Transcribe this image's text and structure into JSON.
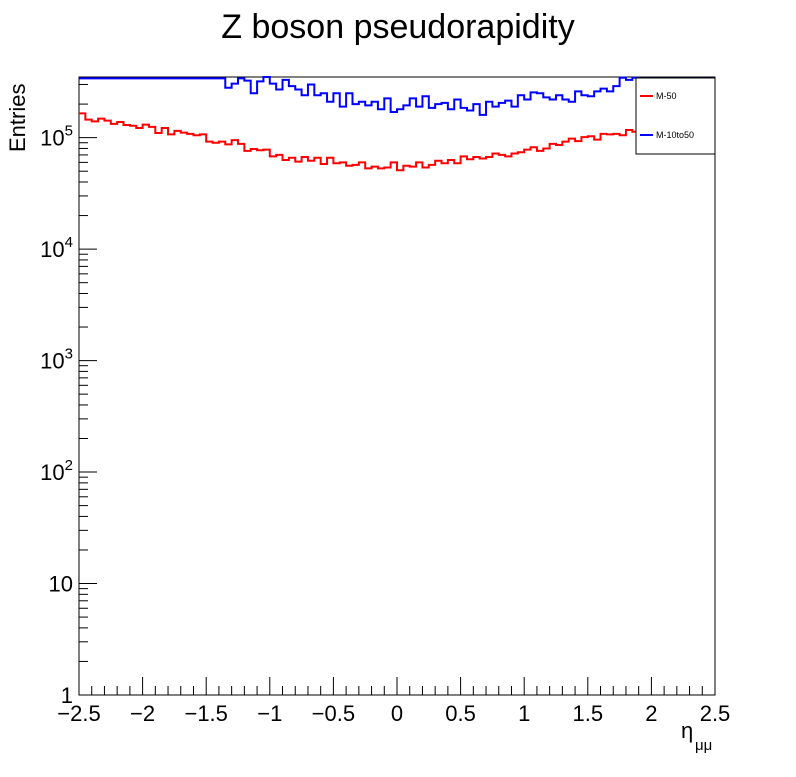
{
  "chart_data": {
    "type": "line",
    "title": "Z boson pseudorapidity",
    "xlabel": "η",
    "xlabel_sub": "μμ",
    "ylabel": "Entries",
    "xlim": [
      -2.5,
      2.5
    ],
    "ylim": [
      1,
      350000
    ],
    "log_y": true,
    "grid": false,
    "legend_position": "top-right",
    "x_ticks": [
      -2.5,
      -2,
      -1.5,
      -1,
      -0.5,
      0,
      0.5,
      1,
      1.5,
      2,
      2.5
    ],
    "x_tick_labels": [
      "−2.5",
      "−2",
      "−1.5",
      "−1",
      "−0.5",
      "0",
      "0.5",
      "1",
      "1.5",
      "2",
      "2.5"
    ],
    "y_ticks": [
      1,
      10,
      100,
      1000,
      10000,
      100000
    ],
    "y_tick_labels": [
      {
        "base": "1",
        "exp": ""
      },
      {
        "base": "10",
        "exp": ""
      },
      {
        "base": "10",
        "exp": "2"
      },
      {
        "base": "10",
        "exp": "3"
      },
      {
        "base": "10",
        "exp": "4"
      },
      {
        "base": "10",
        "exp": "5"
      }
    ],
    "series": [
      {
        "name": "M-50",
        "color": "#ff0000",
        "bin_edges": [
          -2.5,
          2.5
        ],
        "values": [
          165000,
          145000,
          140000,
          148000,
          142000,
          133000,
          138000,
          130000,
          128000,
          122000,
          131000,
          125000,
          110000,
          122000,
          107000,
          115000,
          111000,
          108000,
          105000,
          107000,
          92000,
          90000,
          92000,
          87000,
          95000,
          88000,
          76000,
          79000,
          77000,
          78000,
          68000,
          70000,
          63000,
          66000,
          61000,
          67000,
          62000,
          66000,
          58000,
          66000,
          59000,
          60000,
          56000,
          57000,
          60000,
          53000,
          55000,
          53000,
          54000,
          60000,
          51000,
          56000,
          55000,
          60000,
          54000,
          57000,
          62000,
          59000,
          63000,
          59000,
          68000,
          64000,
          67000,
          65000,
          67000,
          72000,
          70000,
          68000,
          72000,
          74000,
          78000,
          82000,
          76000,
          80000,
          88000,
          86000,
          92000,
          98000,
          93000,
          101000,
          103000,
          96000,
          108000,
          107000,
          108000,
          105000,
          117000,
          113000,
          118000,
          113000,
          125000,
          127000,
          126000,
          119000,
          121000,
          128000,
          132000,
          138000,
          143000,
          152000
        ]
      },
      {
        "name": "M-10to50",
        "color": "#0000ff",
        "bin_edges": [
          -2.5,
          2.5
        ],
        "values": [
          340000,
          340000,
          340000,
          340000,
          340000,
          340000,
          340000,
          340000,
          340000,
          340000,
          340000,
          340000,
          340000,
          340000,
          340000,
          340000,
          340000,
          340000,
          340000,
          340000,
          340000,
          340000,
          340000,
          280000,
          305000,
          340000,
          325000,
          250000,
          320000,
          350000,
          305000,
          270000,
          330000,
          290000,
          270000,
          240000,
          300000,
          240000,
          250000,
          210000,
          250000,
          190000,
          250000,
          200000,
          210000,
          195000,
          210000,
          180000,
          225000,
          170000,
          180000,
          195000,
          225000,
          190000,
          235000,
          185000,
          200000,
          205000,
          180000,
          220000,
          185000,
          175000,
          200000,
          160000,
          210000,
          190000,
          205000,
          215000,
          190000,
          240000,
          220000,
          255000,
          250000,
          230000,
          220000,
          240000,
          220000,
          210000,
          260000,
          240000,
          235000,
          260000,
          275000,
          260000,
          290000,
          345000,
          330000,
          345000,
          340000,
          340000,
          340000,
          340000,
          340000,
          340000,
          340000,
          340000,
          340000,
          340000,
          340000,
          340000
        ]
      }
    ]
  },
  "legend": {
    "entries": [
      {
        "label": "M-50",
        "color": "#ff0000"
      },
      {
        "label": "M-10to50",
        "color": "#0000ff"
      }
    ]
  }
}
